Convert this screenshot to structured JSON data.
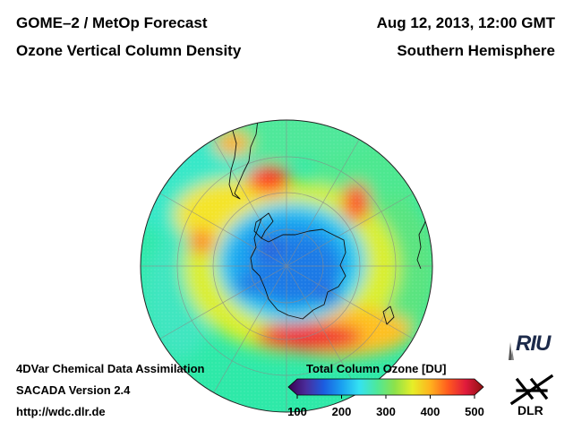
{
  "header": {
    "left_line1": "GOME–2 / MetOp Forecast",
    "left_line2": "Ozone Vertical Column Density",
    "right_line1": "Aug 12, 2013, 12:00 GMT",
    "right_line2": "Southern Hemisphere"
  },
  "footer": {
    "line1": "4DVar Chemical Data Assimilation",
    "line2": "SACADA Version 2.4",
    "line3": "http://wdc.dlr.de"
  },
  "colorbar": {
    "title": "Total Column Ozone [DU]",
    "min": 100,
    "max": 500,
    "ticks": [
      "100",
      "200",
      "300",
      "400",
      "500"
    ],
    "colors": [
      "#3a0050",
      "#4a2d9c",
      "#1b5de0",
      "#1aa0f0",
      "#34e2f2",
      "#4ee89a",
      "#8de24a",
      "#e6ee28",
      "#ffb31e",
      "#ff5a1e",
      "#e01a3c",
      "#8c1010"
    ]
  },
  "map": {
    "projection": "orthographic, Southern Hemisphere",
    "ozone_hole_center": "South Pole"
  },
  "logos": {
    "riu": "RIU",
    "dlr": "DLR"
  }
}
